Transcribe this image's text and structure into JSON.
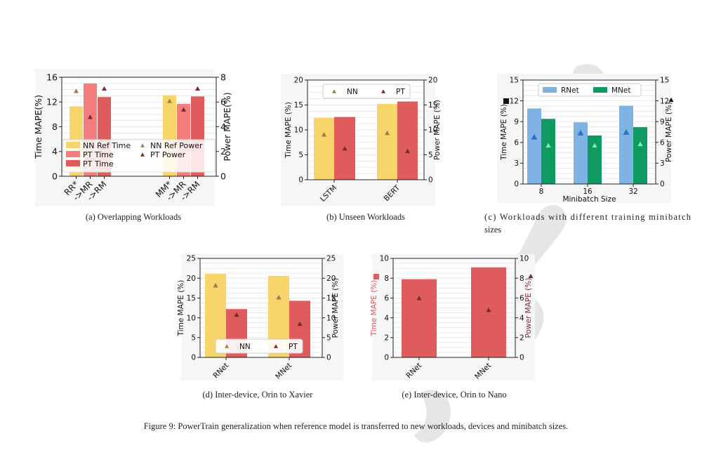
{
  "figure_caption": "Figure 9: PowerTrain generalization when reference model is transferred to new workloads, devices and minibatch sizes.",
  "colors": {
    "nn_ref": "#f7d56b",
    "pt_time": "#f47c7c",
    "pt_time2": "#e05b5b",
    "nn_power_marker": "#9a8152",
    "pt_power_marker": "#7a2a30",
    "rnet": "#7eb3e3",
    "mnet": "#0f9a62",
    "rnet_marker": "#1f74d6",
    "mnet_marker": "#7ef0a8",
    "nano_bar": "#e05b5b",
    "nano_ylabel": "#e05b5b",
    "nano_y2label": "#7a2a30",
    "watermark": "#e6e6e6",
    "panel_bg": "#f6f6f6"
  },
  "chart_data": [
    {
      "id": "a",
      "type": "bar",
      "caption": "(a) Overlapping Workloads",
      "categories": [
        "RR*",
        "->MR",
        "->RM",
        "MM*",
        "->MR",
        "->RM"
      ],
      "ylabel": "Time MAPE(%)",
      "y2label": "Power MAPE(%)",
      "ylim": [
        0,
        16
      ],
      "y2lim": [
        0,
        8
      ],
      "yticks": [
        0,
        4,
        8,
        12,
        16
      ],
      "y2ticks": [
        0,
        2,
        4,
        6,
        8
      ],
      "series": [
        {
          "name": "NN Ref Time",
          "values": [
            11.3,
            null,
            null,
            13.1,
            null,
            null
          ]
        },
        {
          "name": "PT Time",
          "values": [
            null,
            15.0,
            null,
            null,
            11.7,
            null
          ]
        },
        {
          "name": "PT Time",
          "values": [
            null,
            null,
            12.8,
            null,
            null,
            12.9
          ]
        }
      ],
      "markers": [
        {
          "name": "NN Ref Power",
          "values": [
            6.9,
            null,
            null,
            6.1,
            null,
            null
          ]
        },
        {
          "name": "PT Power",
          "values": [
            null,
            4.8,
            7.1,
            null,
            5.4,
            7.1
          ]
        }
      ],
      "legend": "bottom",
      "grid": true
    },
    {
      "id": "b",
      "type": "bar",
      "caption": "(b) Unseen Workloads",
      "categories": [
        "LSTM",
        "BERT"
      ],
      "ylabel": "Time MAPE (%)",
      "y2label": "Power MAPE (%)",
      "ylim": [
        0,
        20
      ],
      "y2lim": [
        0,
        20
      ],
      "yticks": [
        0,
        5,
        10,
        15,
        20
      ],
      "y2ticks": [
        0,
        5,
        10,
        15,
        20
      ],
      "series": [
        {
          "name": "NN",
          "values": [
            12.4,
            15.2
          ]
        },
        {
          "name": "PT",
          "values": [
            12.6,
            15.7
          ]
        }
      ],
      "markers": [
        {
          "name": "NN",
          "values": [
            9.1,
            9.4
          ]
        },
        {
          "name": "PT",
          "values": [
            6.3,
            5.8
          ]
        }
      ],
      "legend": "top",
      "grid": true
    },
    {
      "id": "c",
      "type": "bar",
      "caption": "(c) Workloads with different training minibatch sizes",
      "categories": [
        "8",
        "16",
        "32"
      ],
      "xlabel": "Minibatch Size",
      "ylabel": "Time MAPE (%)",
      "y2label": "Power MAPE (%)",
      "ylim": [
        0,
        15
      ],
      "y2lim": [
        0,
        15
      ],
      "yticks": [
        0,
        3,
        6,
        9,
        12,
        15
      ],
      "y2ticks": [
        0,
        3,
        6,
        9,
        12,
        15
      ],
      "series": [
        {
          "name": "RNet",
          "values": [
            10.9,
            8.9,
            11.3
          ]
        },
        {
          "name": "MNet",
          "values": [
            9.4,
            7.0,
            8.2
          ]
        }
      ],
      "markers": [
        {
          "name": "RNet",
          "values": [
            6.8,
            7.4,
            7.5
          ]
        },
        {
          "name": "MNet",
          "values": [
            5.6,
            5.6,
            5.8
          ]
        }
      ],
      "legend": "top",
      "grid": true
    },
    {
      "id": "d",
      "type": "bar",
      "caption": "(d) Inter-device, Orin to Xavier",
      "categories": [
        "RNet",
        "MNet"
      ],
      "ylabel": "Time MAPE (%)",
      "y2label": "Power MAPE (%)",
      "ylim": [
        0,
        25
      ],
      "y2lim": [
        0,
        25
      ],
      "yticks": [
        0,
        5,
        10,
        15,
        20,
        25
      ],
      "y2ticks": [
        0,
        5,
        10,
        15,
        20,
        25
      ],
      "series": [
        {
          "name": "NN",
          "values": [
            21.1,
            20.6
          ]
        },
        {
          "name": "PT",
          "values": [
            12.2,
            14.3
          ]
        }
      ],
      "markers": [
        {
          "name": "NN",
          "values": [
            18.2,
            15.2
          ]
        },
        {
          "name": "PT",
          "values": [
            10.8,
            8.5
          ]
        }
      ],
      "legend": "bottom",
      "grid": true
    },
    {
      "id": "e",
      "type": "bar",
      "caption": "(e) Inter-device, Orin to Nano",
      "categories": [
        "RNet",
        "MNet"
      ],
      "ylabel": "Time MAPE (%)",
      "y2label": "Power MAPE (%)",
      "ylim": [
        0,
        10
      ],
      "y2lim": [
        0,
        10
      ],
      "yticks": [
        0,
        2,
        4,
        6,
        8,
        10
      ],
      "y2ticks": [
        0,
        2,
        4,
        6,
        8,
        10
      ],
      "series": [
        {
          "name": "",
          "values": [
            7.9,
            9.1
          ]
        }
      ],
      "markers": [
        {
          "name": "",
          "values": [
            6.0,
            4.8
          ]
        }
      ],
      "grid": true
    }
  ]
}
